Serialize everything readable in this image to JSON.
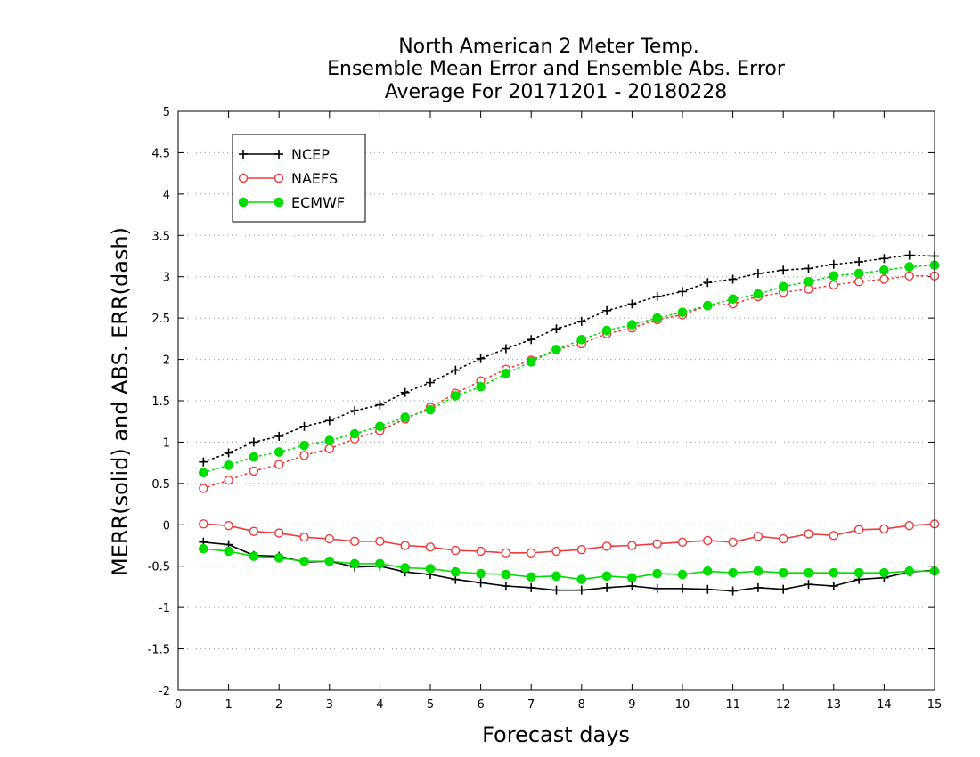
{
  "chart_data": {
    "type": "line",
    "title_lines": [
      "North American 2 Meter Temp.",
      "Ensemble Mean Error and Ensemble Abs. Error",
      "Average For 20171201 - 20180228"
    ],
    "xlabel": "Forecast days",
    "ylabel": "MERR(solid) and ABS. ERR(dash)",
    "xlim": [
      0,
      15
    ],
    "ylim": [
      -2,
      5
    ],
    "x_ticks": [
      0,
      1,
      2,
      3,
      4,
      5,
      6,
      7,
      8,
      9,
      10,
      11,
      12,
      13,
      14,
      15
    ],
    "y_ticks": [
      -2,
      -1.5,
      -1,
      -0.5,
      0,
      0.5,
      1,
      1.5,
      2,
      2.5,
      3,
      3.5,
      4,
      4.5,
      5
    ],
    "y_tick_labels": [
      "-2",
      "-1.5",
      "-1",
      "-0.5",
      "0",
      "0.5",
      "1",
      "1.5",
      "2",
      "2.5",
      "3",
      "3.5",
      "4",
      "4.5",
      "5"
    ],
    "grid": "horizontal dotted",
    "legend_position": "top-left",
    "x": [
      0.5,
      1,
      1.5,
      2,
      2.5,
      3,
      3.5,
      4,
      4.5,
      5,
      5.5,
      6,
      6.5,
      7,
      7.5,
      8,
      8.5,
      9,
      9.5,
      10,
      10.5,
      11,
      11.5,
      12,
      12.5,
      13,
      13.5,
      14,
      14.5,
      15
    ],
    "series": [
      {
        "name": "NCEP",
        "color": "#000000",
        "marker": "plus",
        "mean_error": [
          -0.21,
          -0.24,
          -0.37,
          -0.38,
          -0.45,
          -0.44,
          -0.51,
          -0.5,
          -0.57,
          -0.6,
          -0.66,
          -0.7,
          -0.74,
          -0.76,
          -0.79,
          -0.79,
          -0.76,
          -0.74,
          -0.77,
          -0.77,
          -0.78,
          -0.8,
          -0.76,
          -0.78,
          -0.72,
          -0.74,
          -0.66,
          -0.64,
          -0.57,
          -0.55
        ],
        "abs_error": [
          0.76,
          0.87,
          1.0,
          1.07,
          1.19,
          1.26,
          1.38,
          1.45,
          1.6,
          1.72,
          1.87,
          2.01,
          2.13,
          2.24,
          2.37,
          2.46,
          2.59,
          2.67,
          2.76,
          2.82,
          2.93,
          2.97,
          3.04,
          3.08,
          3.1,
          3.15,
          3.18,
          3.22,
          3.26,
          3.25
        ]
      },
      {
        "name": "NAEFS",
        "color": "#ee3b3b",
        "marker": "open-circle",
        "mean_error": [
          0.01,
          -0.01,
          -0.08,
          -0.1,
          -0.15,
          -0.17,
          -0.2,
          -0.2,
          -0.25,
          -0.27,
          -0.31,
          -0.32,
          -0.34,
          -0.34,
          -0.32,
          -0.3,
          -0.26,
          -0.25,
          -0.23,
          -0.21,
          -0.19,
          -0.21,
          -0.14,
          -0.17,
          -0.11,
          -0.13,
          -0.06,
          -0.05,
          -0.01,
          0.01
        ],
        "abs_error": [
          0.44,
          0.54,
          0.65,
          0.73,
          0.84,
          0.92,
          1.04,
          1.14,
          1.28,
          1.42,
          1.59,
          1.74,
          1.88,
          1.99,
          2.12,
          2.19,
          2.31,
          2.38,
          2.48,
          2.54,
          2.65,
          2.67,
          2.76,
          2.81,
          2.85,
          2.9,
          2.94,
          2.97,
          3.01,
          3.01
        ]
      },
      {
        "name": "ECMWF",
        "color": "#00dd00",
        "marker": "filled-circle",
        "mean_error": [
          -0.29,
          -0.32,
          -0.38,
          -0.4,
          -0.44,
          -0.44,
          -0.47,
          -0.47,
          -0.52,
          -0.53,
          -0.57,
          -0.59,
          -0.6,
          -0.63,
          -0.62,
          -0.66,
          -0.62,
          -0.64,
          -0.59,
          -0.6,
          -0.56,
          -0.58,
          -0.56,
          -0.58,
          -0.58,
          -0.58,
          -0.58,
          -0.58,
          -0.56,
          -0.56
        ],
        "abs_error": [
          0.63,
          0.72,
          0.82,
          0.88,
          0.96,
          1.02,
          1.1,
          1.19,
          1.3,
          1.39,
          1.56,
          1.67,
          1.83,
          1.97,
          2.12,
          2.24,
          2.35,
          2.42,
          2.5,
          2.57,
          2.65,
          2.73,
          2.79,
          2.88,
          2.94,
          3.01,
          3.04,
          3.08,
          3.12,
          3.14
        ]
      }
    ]
  }
}
